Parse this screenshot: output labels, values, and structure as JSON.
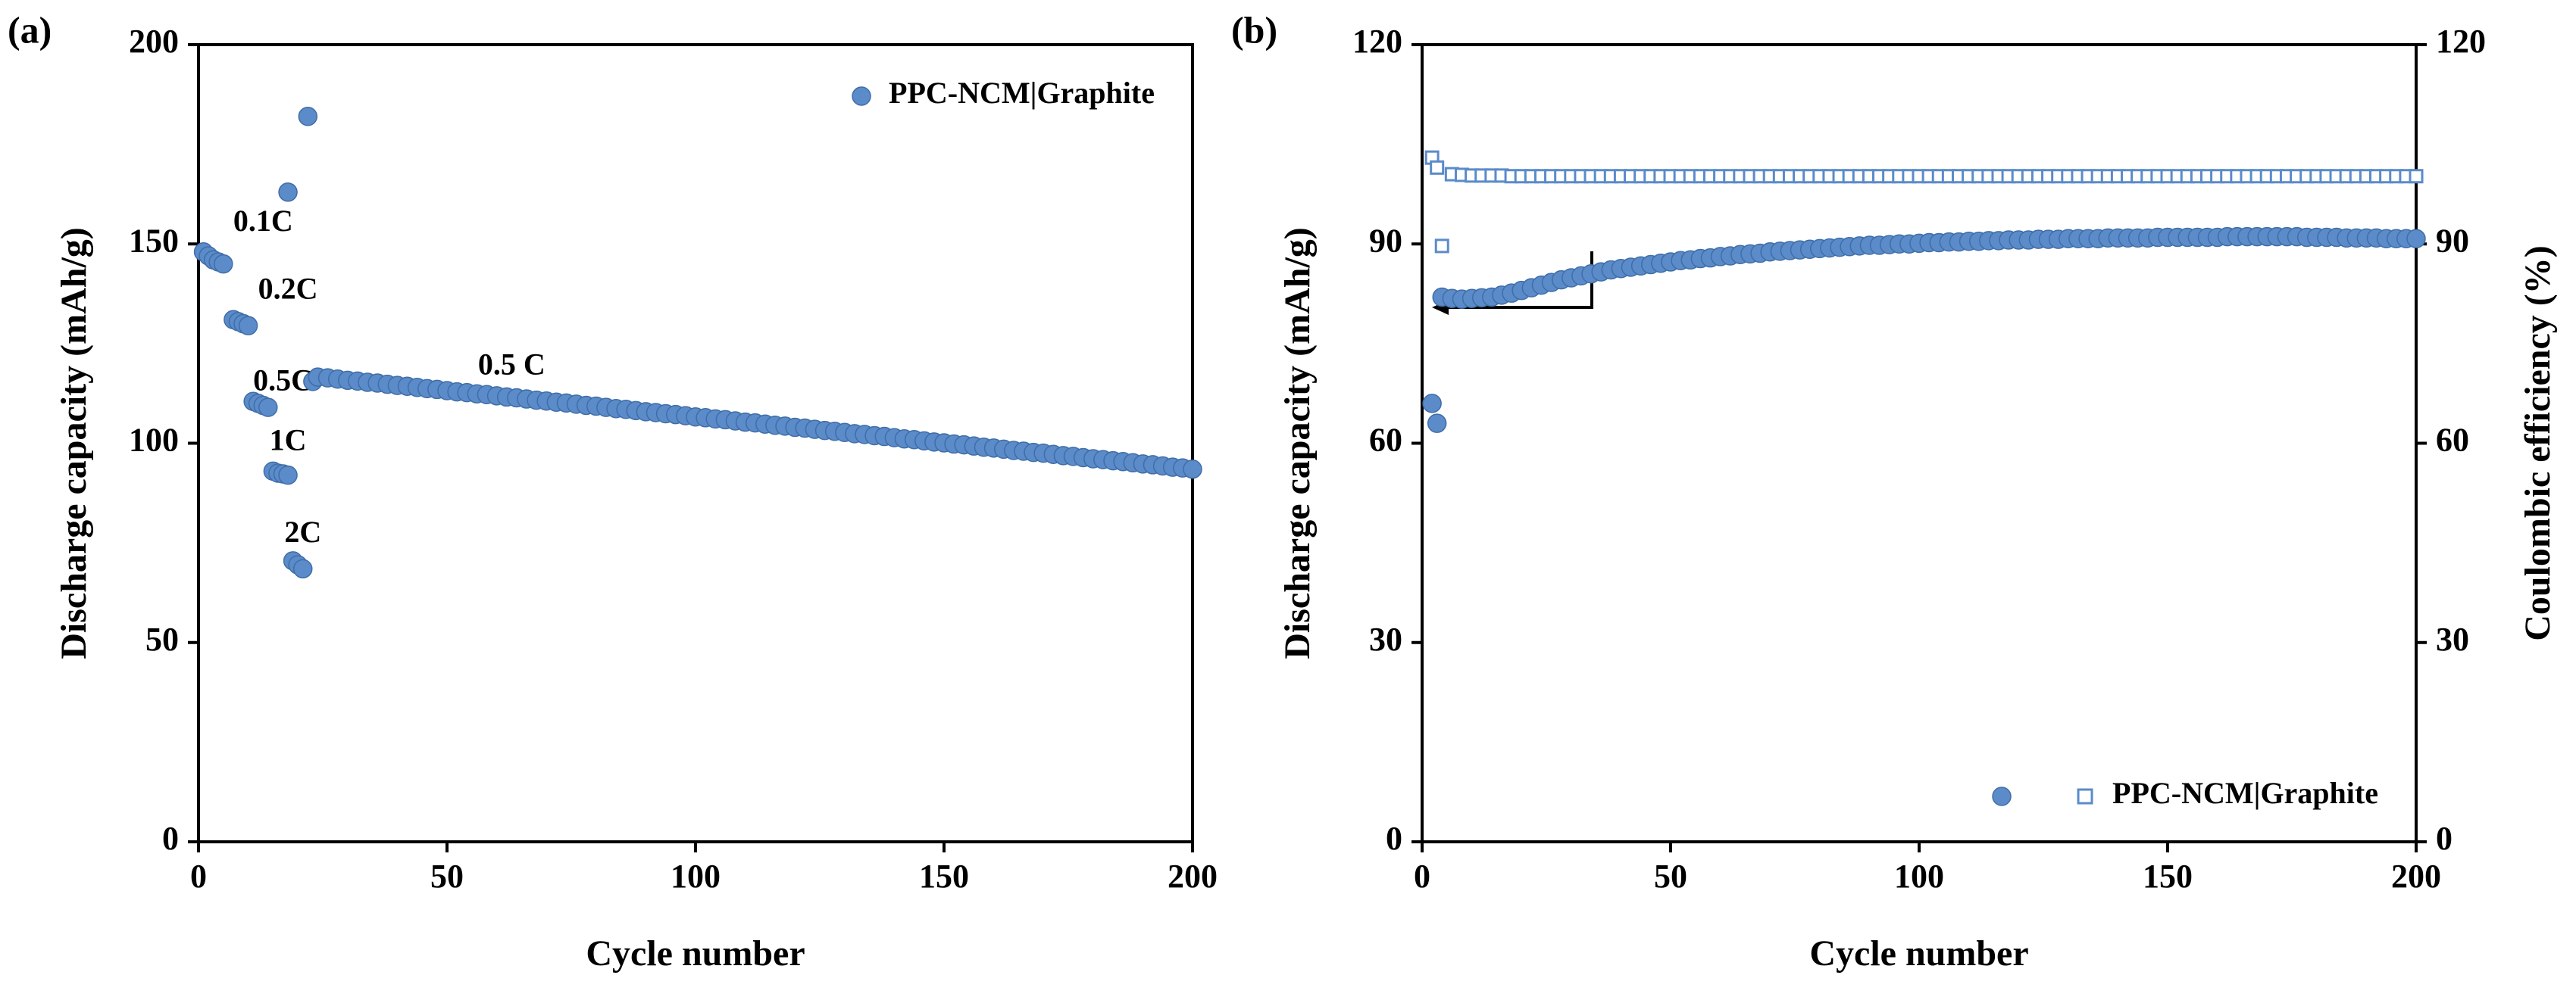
{
  "chart_data": [
    {
      "type": "scatter",
      "panel_label": "(a)",
      "x_label": "Cycle number",
      "y_label": "Discharge capacity (mAh/g)",
      "xlim": [
        0,
        200
      ],
      "xticks": [
        0,
        50,
        100,
        150,
        200
      ],
      "ylim": [
        0,
        200
      ],
      "yticks": [
        0,
        50,
        100,
        150,
        200
      ],
      "legend": "upper right",
      "annotations": [
        "0.1C",
        "0.2C",
        "0.5C",
        "1C",
        "2C",
        "0.5 C"
      ],
      "x": [
        1,
        2,
        3,
        4,
        5,
        7,
        8,
        9,
        10,
        11,
        12,
        13,
        14,
        15,
        16,
        17,
        18,
        19,
        20,
        21,
        18,
        22,
        23,
        24,
        26,
        28,
        30,
        32,
        34,
        36,
        38,
        40,
        42,
        44,
        46,
        48,
        50,
        52,
        54,
        56,
        58,
        60,
        62,
        64,
        66,
        68,
        70,
        72,
        74,
        76,
        78,
        80,
        82,
        84,
        86,
        88,
        90,
        92,
        94,
        96,
        98,
        100,
        102,
        104,
        106,
        108,
        110,
        112,
        114,
        116,
        118,
        120,
        122,
        124,
        126,
        128,
        130,
        132,
        134,
        136,
        138,
        140,
        142,
        144,
        146,
        148,
        150,
        152,
        154,
        156,
        158,
        160,
        162,
        164,
        166,
        168,
        170,
        172,
        174,
        176,
        178,
        180,
        182,
        184,
        186,
        188,
        190,
        192,
        194,
        196,
        198,
        200
      ],
      "series": [
        {
          "name": "PPC-NCM|Graphite",
          "color": "#5b8bc9",
          "marker": "circle",
          "values": [
            148,
            147,
            146,
            145.5,
            145,
            131,
            130.5,
            130,
            129.5,
            110.5,
            110,
            109.5,
            109,
            93,
            92.5,
            92.3,
            92,
            70.5,
            69.5,
            68.5,
            163,
            182,
            115.5,
            116.6,
            116.4,
            116.1,
            115.8,
            115.6,
            115.3,
            115.1,
            114.8,
            114.5,
            114.3,
            114.0,
            113.7,
            113.5,
            113.2,
            112.9,
            112.7,
            112.4,
            112.2,
            111.9,
            111.6,
            111.4,
            111.1,
            110.8,
            110.6,
            110.3,
            110.1,
            109.8,
            109.5,
            109.3,
            109.0,
            108.7,
            108.5,
            108.2,
            107.9,
            107.7,
            107.4,
            107.2,
            106.9,
            106.6,
            106.4,
            106.1,
            105.9,
            105.6,
            105.3,
            105.1,
            104.8,
            104.5,
            104.3,
            104.0,
            103.8,
            103.5,
            103.2,
            103.0,
            102.7,
            102.4,
            102.2,
            101.9,
            101.7,
            101.4,
            101.1,
            100.9,
            100.6,
            100.3,
            100.1,
            99.8,
            99.6,
            99.3,
            99.0,
            98.8,
            98.5,
            98.2,
            98.0,
            97.7,
            97.5,
            97.2,
            96.9,
            96.7,
            96.4,
            96.1,
            95.9,
            95.6,
            95.4,
            95.1,
            94.8,
            94.6,
            94.3,
            94.0,
            93.8,
            93.5
          ]
        }
      ]
    },
    {
      "type": "scatter",
      "panel_label": "(b)",
      "x_label": "Cycle number",
      "y_label": "Discharge capacity (mAh/g)",
      "y2_label": "Coulombic efficiency (%)",
      "xlim": [
        0,
        200
      ],
      "xticks": [
        0,
        50,
        100,
        150,
        200
      ],
      "ylim": [
        0,
        120
      ],
      "yticks": [
        0,
        30,
        60,
        90,
        120
      ],
      "y2lim": [
        0,
        120
      ],
      "y2ticks": [
        0,
        30,
        60,
        90,
        120
      ],
      "legend": "lower right",
      "x": [
        2,
        3,
        4,
        6,
        8,
        10,
        12,
        14,
        16,
        18,
        20,
        22,
        24,
        26,
        28,
        30,
        32,
        34,
        36,
        38,
        40,
        42,
        44,
        46,
        48,
        50,
        52,
        54,
        56,
        58,
        60,
        62,
        64,
        66,
        68,
        70,
        72,
        74,
        76,
        78,
        80,
        82,
        84,
        86,
        88,
        90,
        92,
        94,
        96,
        98,
        100,
        102,
        104,
        106,
        108,
        110,
        112,
        114,
        116,
        118,
        120,
        122,
        124,
        126,
        128,
        130,
        132,
        134,
        136,
        138,
        140,
        142,
        144,
        146,
        148,
        150,
        152,
        154,
        156,
        158,
        160,
        162,
        164,
        166,
        168,
        170,
        172,
        174,
        176,
        178,
        180,
        182,
        184,
        186,
        188,
        190,
        192,
        194,
        196,
        198,
        200
      ],
      "series": [
        {
          "color": "#5b8bc9",
          "marker": "circle",
          "values": [
            66,
            63,
            82,
            81.8,
            81.7,
            81.8,
            81.9,
            82.0,
            82.3,
            82.6,
            83.0,
            83.4,
            83.8,
            84.2,
            84.6,
            84.9,
            85.2,
            85.5,
            85.8,
            86.1,
            86.3,
            86.5,
            86.7,
            86.9,
            87.1,
            87.3,
            87.5,
            87.6,
            87.8,
            87.9,
            88.1,
            88.2,
            88.4,
            88.5,
            88.6,
            88.8,
            88.9,
            89.0,
            89.1,
            89.2,
            89.3,
            89.4,
            89.5,
            89.6,
            89.7,
            89.8,
            89.8,
            89.9,
            90.0,
            90.0,
            90.1,
            90.2,
            90.2,
            90.3,
            90.3,
            90.4,
            90.4,
            90.5,
            90.5,
            90.6,
            90.6,
            90.6,
            90.7,
            90.7,
            90.7,
            90.8,
            90.8,
            90.8,
            90.8,
            90.9,
            90.9,
            90.9,
            90.9,
            90.9,
            91.0,
            91.0,
            91.0,
            91.0,
            91.0,
            91.0,
            91.0,
            91.1,
            91.1,
            91.1,
            91.1,
            91.1,
            91.1,
            91.1,
            91.1,
            91.0,
            91.0,
            91.0,
            91.0,
            90.9,
            90.9,
            90.9,
            90.9,
            90.8,
            90.8,
            90.8,
            90.8
          ]
        },
        {
          "name": "PPC-NCM|Graphite",
          "color": "#5b8bc9",
          "marker": "square",
          "axis": "y2",
          "values": [
            103,
            101.5,
            89.7,
            100.5,
            100.4,
            100.3,
            100.3,
            100.3,
            100.3,
            100.2,
            100.2,
            100.2,
            100.2,
            100.2,
            100.2,
            100.2,
            100.2,
            100.2,
            100.2,
            100.2,
            100.2,
            100.2,
            100.2,
            100.2,
            100.2,
            100.2,
            100.2,
            100.2,
            100.2,
            100.2,
            100.2,
            100.2,
            100.2,
            100.2,
            100.2,
            100.2,
            100.2,
            100.2,
            100.2,
            100.2,
            100.2,
            100.2,
            100.2,
            100.2,
            100.2,
            100.2,
            100.2,
            100.2,
            100.2,
            100.2,
            100.2,
            100.2,
            100.2,
            100.2,
            100.2,
            100.2,
            100.2,
            100.2,
            100.2,
            100.2,
            100.2,
            100.2,
            100.2,
            100.2,
            100.2,
            100.2,
            100.2,
            100.2,
            100.2,
            100.2,
            100.2,
            100.2,
            100.2,
            100.2,
            100.2,
            100.2,
            100.2,
            100.2,
            100.2,
            100.2,
            100.2,
            100.2,
            100.2,
            100.2,
            100.2,
            100.2,
            100.2,
            100.2,
            100.2,
            100.2,
            100.2,
            100.2,
            100.2,
            100.2,
            100.2,
            100.2,
            100.2,
            100.2,
            100.2,
            100.2,
            100.2
          ]
        }
      ]
    }
  ]
}
